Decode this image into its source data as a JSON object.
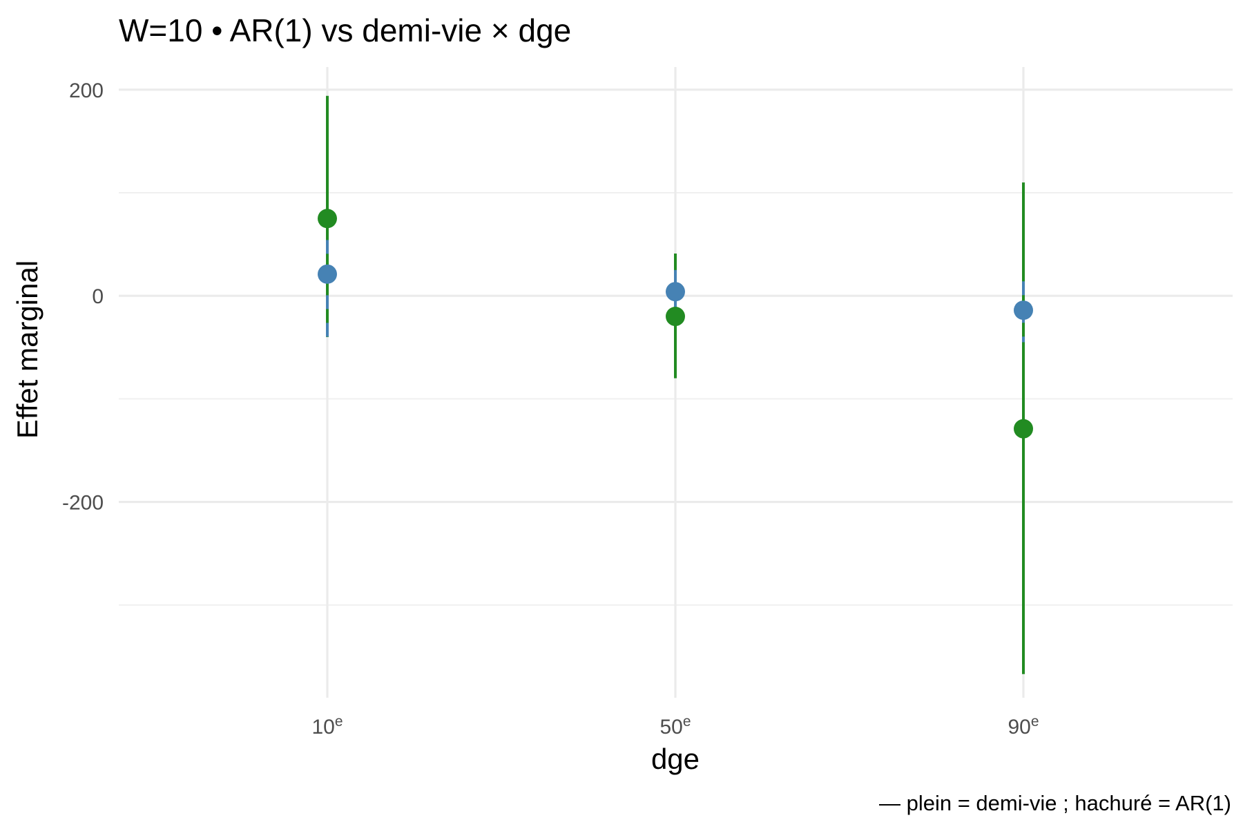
{
  "chart_data": {
    "type": "scatter",
    "title": "W=10 • AR(1) vs demi-vie × dge",
    "xlabel": "dge",
    "ylabel": "Effet marginal",
    "caption": "— plein = demi-vie ; hachuré = AR(1)",
    "categories": [
      {
        "base": "10",
        "sup": "e"
      },
      {
        "base": "50",
        "sup": "e"
      },
      {
        "base": "90",
        "sup": "e"
      }
    ],
    "ylim": [
      -390,
      222
    ],
    "yticks": [
      200,
      0,
      -200
    ],
    "yminor": [
      100,
      -100,
      -300
    ],
    "grid": true,
    "series": [
      {
        "color": "#228B22",
        "linestyle": "solid",
        "values": [
          75,
          -20,
          -129
        ],
        "lower": [
          -40,
          -80,
          -367
        ],
        "upper": [
          194,
          41,
          110
        ]
      },
      {
        "color": "#4682B4",
        "linestyle": "dashed",
        "values": [
          21,
          4,
          -14
        ],
        "lower": [
          -50,
          -17,
          -45
        ],
        "upper": [
          81,
          25,
          14
        ]
      }
    ]
  }
}
